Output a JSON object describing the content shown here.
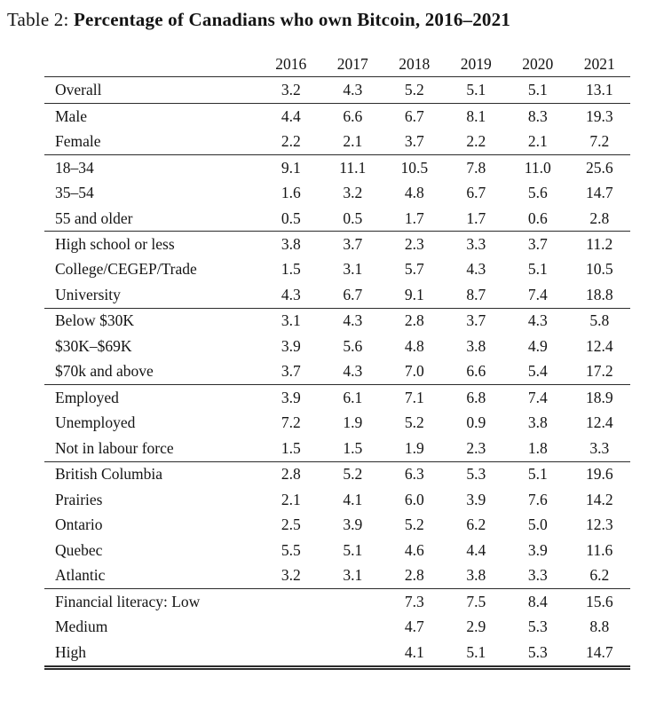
{
  "caption": {
    "prefix": "Table 2: ",
    "title": "Percentage of Canadians who own Bitcoin, 2016–2021"
  },
  "chart_data": {
    "type": "table",
    "title": "Percentage of Canadians who own Bitcoin, 2016–2021",
    "columns": [
      "",
      "2016",
      "2017",
      "2018",
      "2019",
      "2020",
      "2021"
    ],
    "unit": "percent",
    "groups": [
      {
        "name": "overall",
        "rows": [
          {
            "label": "Overall",
            "values": [
              "3.2",
              "4.3",
              "5.2",
              "5.1",
              "5.1",
              "13.1"
            ]
          }
        ]
      },
      {
        "name": "gender",
        "rows": [
          {
            "label": "Male",
            "values": [
              "4.4",
              "6.6",
              "6.7",
              "8.1",
              "8.3",
              "19.3"
            ]
          },
          {
            "label": "Female",
            "values": [
              "2.2",
              "2.1",
              "3.7",
              "2.2",
              "2.1",
              "7.2"
            ]
          }
        ]
      },
      {
        "name": "age",
        "rows": [
          {
            "label": "18–34",
            "values": [
              "9.1",
              "11.1",
              "10.5",
              "7.8",
              "11.0",
              "25.6"
            ]
          },
          {
            "label": "35–54",
            "values": [
              "1.6",
              "3.2",
              "4.8",
              "6.7",
              "5.6",
              "14.7"
            ]
          },
          {
            "label": "55 and older",
            "values": [
              "0.5",
              "0.5",
              "1.7",
              "1.7",
              "0.6",
              "2.8"
            ]
          }
        ]
      },
      {
        "name": "education",
        "rows": [
          {
            "label": "High school or less",
            "values": [
              "3.8",
              "3.7",
              "2.3",
              "3.3",
              "3.7",
              "11.2"
            ]
          },
          {
            "label": "College/CEGEP/Trade",
            "values": [
              "1.5",
              "3.1",
              "5.7",
              "4.3",
              "5.1",
              "10.5"
            ]
          },
          {
            "label": "University",
            "values": [
              "4.3",
              "6.7",
              "9.1",
              "8.7",
              "7.4",
              "18.8"
            ]
          }
        ]
      },
      {
        "name": "income",
        "rows": [
          {
            "label": "Below $30K",
            "values": [
              "3.1",
              "4.3",
              "2.8",
              "3.7",
              "4.3",
              "5.8"
            ]
          },
          {
            "label": "$30K–$69K",
            "values": [
              "3.9",
              "5.6",
              "4.8",
              "3.8",
              "4.9",
              "12.4"
            ]
          },
          {
            "label": "$70k and above",
            "values": [
              "3.7",
              "4.3",
              "7.0",
              "6.6",
              "5.4",
              "17.2"
            ]
          }
        ]
      },
      {
        "name": "employment",
        "rows": [
          {
            "label": "Employed",
            "values": [
              "3.9",
              "6.1",
              "7.1",
              "6.8",
              "7.4",
              "18.9"
            ]
          },
          {
            "label": "Unemployed",
            "values": [
              "7.2",
              "1.9",
              "5.2",
              "0.9",
              "3.8",
              "12.4"
            ]
          },
          {
            "label": "Not in labour force",
            "values": [
              "1.5",
              "1.5",
              "1.9",
              "2.3",
              "1.8",
              "3.3"
            ]
          }
        ]
      },
      {
        "name": "region",
        "rows": [
          {
            "label": "British Columbia",
            "values": [
              "2.8",
              "5.2",
              "6.3",
              "5.3",
              "5.1",
              "19.6"
            ]
          },
          {
            "label": "Prairies",
            "values": [
              "2.1",
              "4.1",
              "6.0",
              "3.9",
              "7.6",
              "14.2"
            ]
          },
          {
            "label": "Ontario",
            "values": [
              "2.5",
              "3.9",
              "5.2",
              "6.2",
              "5.0",
              "12.3"
            ]
          },
          {
            "label": "Quebec",
            "values": [
              "5.5",
              "5.1",
              "4.6",
              "4.4",
              "3.9",
              "11.6"
            ]
          },
          {
            "label": "Atlantic",
            "values": [
              "3.2",
              "3.1",
              "2.8",
              "3.8",
              "3.3",
              "6.2"
            ]
          }
        ]
      },
      {
        "name": "financial-literacy",
        "rows": [
          {
            "label": "Financial literacy: Low",
            "values": [
              "",
              "",
              "7.3",
              "7.5",
              "8.4",
              "15.6"
            ]
          },
          {
            "label": "Medium",
            "values": [
              "",
              "",
              "4.7",
              "2.9",
              "5.3",
              "8.8"
            ]
          },
          {
            "label": "High",
            "values": [
              "",
              "",
              "4.1",
              "5.1",
              "5.3",
              "14.7"
            ]
          }
        ]
      }
    ]
  }
}
